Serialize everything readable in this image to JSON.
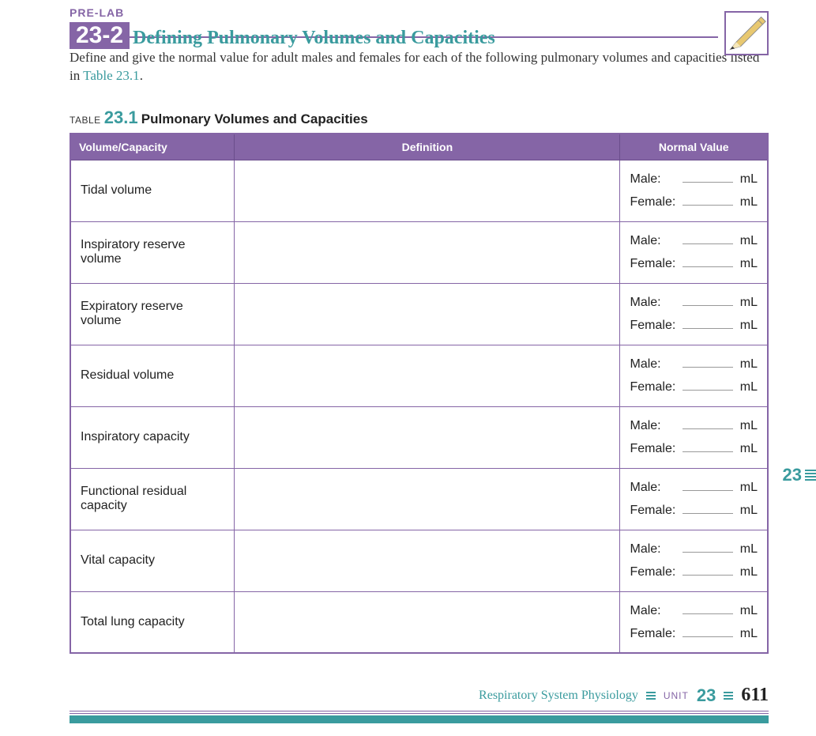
{
  "colors": {
    "purple": "#8565a6",
    "teal": "#3a9b9e",
    "text": "#333333",
    "blank_line": "#999999",
    "white": "#ffffff"
  },
  "header": {
    "prelab": "PRE-LAB",
    "section_number": "23-2",
    "title": "Defining Pulmonary Volumes and Capacities"
  },
  "instructions": {
    "text_before": "Define and give the normal value for adult males and females for each of the following pulmonary volumes and capacities listed in ",
    "table_ref": "Table 23.1",
    "text_after": "."
  },
  "table_caption": {
    "label": "TABLE",
    "number": "23.1",
    "title": "Pulmonary Volumes and Capacities"
  },
  "table": {
    "columns": [
      "Volume/Capacity",
      "Definition",
      "Normal Value"
    ],
    "value_labels": {
      "male": "Male:",
      "female": "Female:"
    },
    "unit": "mL",
    "rows": [
      {
        "name": "Tidal volume"
      },
      {
        "name": "Inspiratory reserve volume"
      },
      {
        "name": "Expiratory reserve volume"
      },
      {
        "name": "Residual volume"
      },
      {
        "name": "Inspiratory capacity"
      },
      {
        "name": "Functional residual capacity"
      },
      {
        "name": "Vital capacity"
      },
      {
        "name": "Total lung capacity"
      }
    ]
  },
  "side_tab": "23",
  "footer": {
    "chapter_title": "Respiratory System Physiology",
    "unit_label": "UNIT",
    "unit_number": "23",
    "page": "611"
  }
}
